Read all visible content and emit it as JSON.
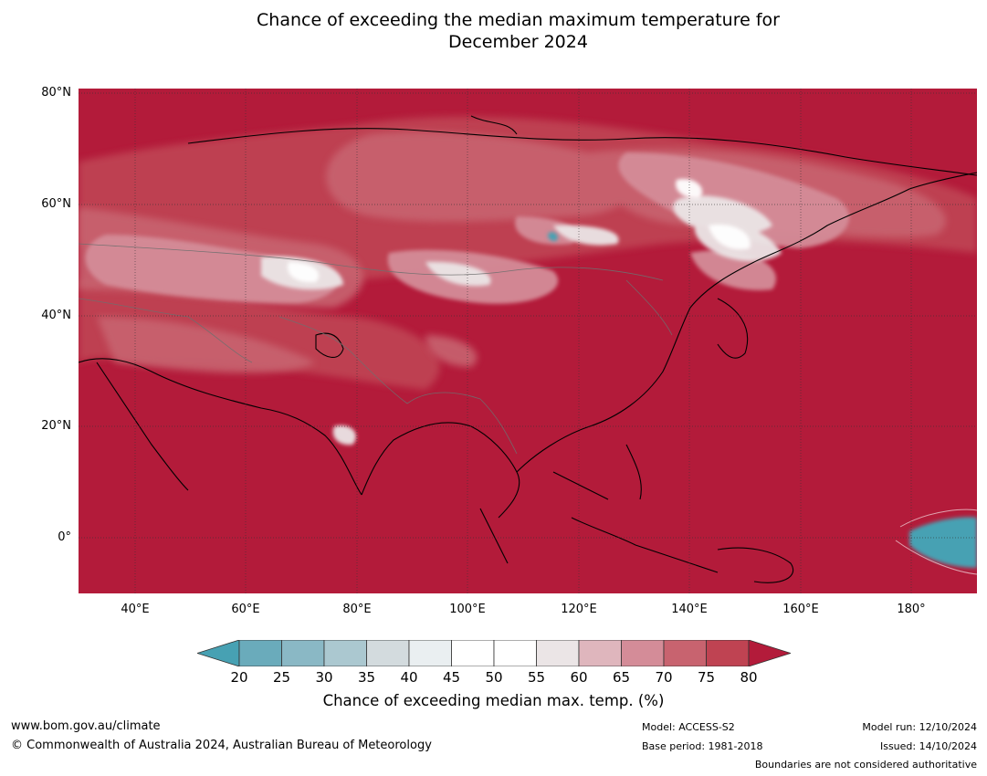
{
  "title": {
    "line1": "Chance of exceeding the median maximum temperature for",
    "line2": "December 2024"
  },
  "axes": {
    "lat_labels": [
      "80°N",
      "60°N",
      "40°N",
      "20°N",
      "0°"
    ],
    "lon_labels": [
      "40°E",
      "60°E",
      "80°E",
      "100°E",
      "120°E",
      "140°E",
      "160°E",
      "180°"
    ]
  },
  "colorbar": {
    "ticks": [
      "20",
      "25",
      "30",
      "35",
      "40",
      "45",
      "50",
      "55",
      "60",
      "65",
      "70",
      "75",
      "80"
    ],
    "colors": [
      "#47a1b3",
      "#6aabbb",
      "#8ab8c5",
      "#abc8d0",
      "#d3dbde",
      "#eaeff1",
      "#ffffff",
      "#ffffff",
      "#ebe5e6",
      "#dfb6bd",
      "#d48c98",
      "#c8636f",
      "#bf4352",
      "#b31b3a"
    ],
    "label": "Chance of exceeding median max. temp. (%)"
  },
  "footer": {
    "website": "www.bom.gov.au/climate",
    "copyright": "© Commonwealth of Australia 2024, Australian Bureau of Meteorology",
    "model": "Model: ACCESS-S2",
    "base_period": "Base period: 1981-2018",
    "model_run": "Model run: 12/10/2024",
    "issued": "Issued: 14/10/2024",
    "disclaimer": "Boundaries are not considered authoritative"
  }
}
